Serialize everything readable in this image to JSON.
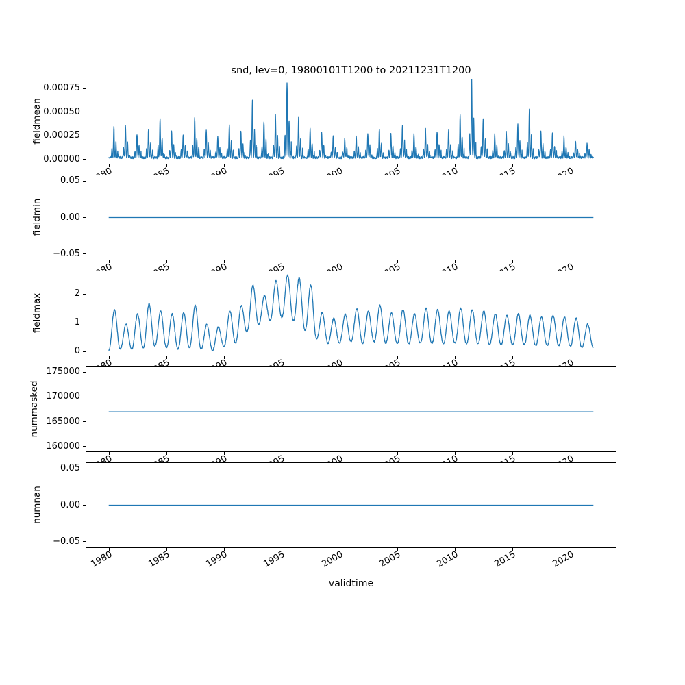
{
  "title": "snd, lev=0, 19800101T1200 to 20211231T1200",
  "xlabel": "validtime",
  "line_color": "#1f77b4",
  "x_domain": [
    1978.0,
    2024.0
  ],
  "xticks": {
    "years": [
      1980,
      1985,
      1990,
      1995,
      2000,
      2005,
      2010,
      2015,
      2020
    ],
    "labels": [
      "1980",
      "1985",
      "1990",
      "1995",
      "2000",
      "2005",
      "2010",
      "2015",
      "2020"
    ]
  },
  "chart_data": [
    {
      "type": "line",
      "name": "fieldmean",
      "ylabel": "fieldmean",
      "color": "#1f77b4",
      "x_range": [
        1980.0,
        2022.0
      ],
      "ylim": [
        -4.5e-05,
        0.000845
      ],
      "yticks": {
        "values": [
          0.0,
          0.00025,
          0.0005,
          0.00075
        ],
        "labels": [
          "0.00000",
          "0.00025",
          "0.00050",
          "0.00075"
        ]
      },
      "series_kind": "annual_spikes",
      "baseline": 2e-05,
      "annual_peaks": [
        0.00033,
        0.00035,
        0.00025,
        0.0003,
        0.00042,
        0.00028,
        0.00025,
        0.00042,
        0.0003,
        0.00022,
        0.00035,
        0.00028,
        0.0006,
        0.00038,
        0.00045,
        0.0008,
        0.00042,
        0.0003,
        0.00028,
        0.00022,
        0.0002,
        0.00022,
        0.00025,
        0.0003,
        0.00025,
        0.00035,
        0.00025,
        0.0003,
        0.00028,
        0.0003,
        0.00045,
        0.00082,
        0.0004,
        0.00025,
        0.00028,
        0.00035,
        0.0005,
        0.00028,
        0.00025,
        0.00022,
        0.00018,
        0.00015
      ]
    },
    {
      "type": "line",
      "name": "fieldmin",
      "ylabel": "fieldmin",
      "color": "#1f77b4",
      "x_range": [
        1980.0,
        2022.0
      ],
      "ylim": [
        -0.0575,
        0.0575
      ],
      "yticks": {
        "values": [
          -0.05,
          0.0,
          0.05
        ],
        "labels": [
          "−0.05",
          "0.00",
          "0.05"
        ]
      },
      "series_kind": "constant",
      "value": 0.0
    },
    {
      "type": "line",
      "name": "fieldmax",
      "ylabel": "fieldmax",
      "color": "#1f77b4",
      "x_range": [
        1980.0,
        2022.0
      ],
      "ylim": [
        -0.1325,
        2.7825
      ],
      "yticks": {
        "values": [
          0,
          1,
          2
        ],
        "labels": [
          "0",
          "1",
          "2"
        ]
      },
      "series_kind": "annual_cycle",
      "annual_peaks": [
        1.45,
        0.95,
        1.3,
        1.65,
        1.4,
        1.3,
        1.35,
        1.6,
        0.95,
        0.85,
        1.4,
        1.6,
        2.3,
        1.95,
        2.45,
        2.65,
        2.55,
        2.3,
        1.35,
        1.15,
        1.3,
        1.5,
        1.4,
        1.6,
        1.35,
        1.45,
        1.3,
        1.5,
        1.45,
        1.4,
        1.5,
        1.45,
        1.4,
        1.3,
        1.25,
        1.3,
        1.25,
        1.2,
        1.25,
        1.2,
        1.15,
        0.95
      ],
      "annual_mins": [
        0.05,
        0.1,
        0.1,
        0.15,
        0.2,
        0.15,
        0.1,
        0.15,
        0.1,
        0.05,
        0.2,
        0.3,
        0.7,
        0.95,
        1.1,
        1.2,
        1.1,
        0.75,
        0.45,
        0.3,
        0.3,
        0.35,
        0.3,
        0.35,
        0.3,
        0.3,
        0.28,
        0.3,
        0.3,
        0.28,
        0.3,
        0.28,
        0.28,
        0.25,
        0.25,
        0.25,
        0.25,
        0.22,
        0.22,
        0.22,
        0.2,
        0.15
      ]
    },
    {
      "type": "line",
      "name": "nummasked",
      "ylabel": "nummasked",
      "color": "#1f77b4",
      "x_range": [
        1980.0,
        2022.0
      ],
      "ylim": [
        159000,
        176000
      ],
      "yticks": {
        "values": [
          160000,
          165000,
          170000,
          175000
        ],
        "labels": [
          "160000",
          "165000",
          "170000",
          "175000"
        ]
      },
      "series_kind": "constant",
      "value": 167000
    },
    {
      "type": "line",
      "name": "numnan",
      "ylabel": "numnan",
      "color": "#1f77b4",
      "x_range": [
        1980.0,
        2022.0
      ],
      "ylim": [
        -0.0575,
        0.0575
      ],
      "yticks": {
        "values": [
          -0.05,
          0.0,
          0.05
        ],
        "labels": [
          "−0.05",
          "0.00",
          "0.05"
        ]
      },
      "series_kind": "constant",
      "value": 0.0
    }
  ]
}
